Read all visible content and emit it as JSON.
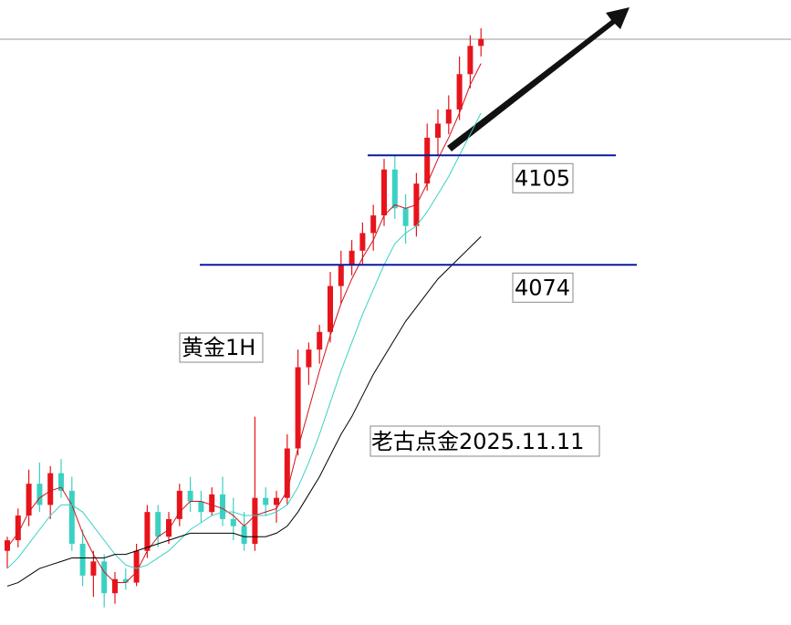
{
  "chart_data": {
    "type": "candlestick",
    "title": "黄金1H",
    "annotation": "老古点金2025.11.11",
    "ylim": [
      3972,
      4149
    ],
    "up_color": "#e8141c",
    "down_color": "#3ad1c4",
    "levels": [
      4105,
      4074
    ],
    "level_color": "#0a1a9c",
    "candles": [
      {
        "open": 3993,
        "high": 3997,
        "low": 3988,
        "close": 3996
      },
      {
        "open": 3996,
        "high": 4005,
        "low": 3994,
        "close": 4003
      },
      {
        "open": 4003,
        "high": 4016,
        "low": 4000,
        "close": 4012
      },
      {
        "open": 4012,
        "high": 4018,
        "low": 4004,
        "close": 4006
      },
      {
        "open": 4006,
        "high": 4017,
        "low": 4002,
        "close": 4015
      },
      {
        "open": 4015,
        "high": 4019,
        "low": 4008,
        "close": 4010
      },
      {
        "open": 4010,
        "high": 4014,
        "low": 3993,
        "close": 3995
      },
      {
        "open": 3995,
        "high": 3999,
        "low": 3983,
        "close": 3986
      },
      {
        "open": 3986,
        "high": 3993,
        "low": 3980,
        "close": 3990
      },
      {
        "open": 3990,
        "high": 3992,
        "low": 3977,
        "close": 3981
      },
      {
        "open": 3981,
        "high": 3987,
        "low": 3978,
        "close": 3985
      },
      {
        "open": 3985,
        "high": 3988,
        "low": 3982,
        "close": 3984
      },
      {
        "open": 3984,
        "high": 3995,
        "low": 3983,
        "close": 3993
      },
      {
        "open": 3993,
        "high": 4006,
        "low": 3991,
        "close": 4004
      },
      {
        "open": 4004,
        "high": 4006,
        "low": 3994,
        "close": 3997
      },
      {
        "open": 3997,
        "high": 4004,
        "low": 3995,
        "close": 4002
      },
      {
        "open": 4002,
        "high": 4012,
        "low": 4000,
        "close": 4010
      },
      {
        "open": 4010,
        "high": 4014,
        "low": 4004,
        "close": 4007
      },
      {
        "open": 4007,
        "high": 4010,
        "low": 4001,
        "close": 4004
      },
      {
        "open": 4004,
        "high": 4011,
        "low": 4003,
        "close": 4009
      },
      {
        "open": 4009,
        "high": 4014,
        "low": 4000,
        "close": 4002
      },
      {
        "open": 4002,
        "high": 4008,
        "low": 3996,
        "close": 4000
      },
      {
        "open": 4000,
        "high": 4004,
        "low": 3993,
        "close": 3995
      },
      {
        "open": 3995,
        "high": 4031,
        "low": 3993,
        "close": 4008
      },
      {
        "open": 4008,
        "high": 4011,
        "low": 4003,
        "close": 4006
      },
      {
        "open": 4006,
        "high": 4010,
        "low": 4001,
        "close": 4008
      },
      {
        "open": 4008,
        "high": 4026,
        "low": 4006,
        "close": 4022
      },
      {
        "open": 4022,
        "high": 4050,
        "low": 4020,
        "close": 4045
      },
      {
        "open": 4045,
        "high": 4052,
        "low": 4040,
        "close": 4050
      },
      {
        "open": 4050,
        "high": 4057,
        "low": 4046,
        "close": 4055
      },
      {
        "open": 4055,
        "high": 4072,
        "low": 4052,
        "close": 4068
      },
      {
        "open": 4068,
        "high": 4078,
        "low": 4063,
        "close": 4074
      },
      {
        "open": 4074,
        "high": 4081,
        "low": 4071,
        "close": 4078
      },
      {
        "open": 4078,
        "high": 4086,
        "low": 4074,
        "close": 4083
      },
      {
        "open": 4083,
        "high": 4091,
        "low": 4078,
        "close": 4088
      },
      {
        "open": 4088,
        "high": 4104,
        "low": 4085,
        "close": 4101
      },
      {
        "open": 4101,
        "high": 4105,
        "low": 4087,
        "close": 4090
      },
      {
        "open": 4090,
        "high": 4094,
        "low": 4080,
        "close": 4085
      },
      {
        "open": 4085,
        "high": 4100,
        "low": 4082,
        "close": 4097
      },
      {
        "open": 4097,
        "high": 4114,
        "low": 4095,
        "close": 4110
      },
      {
        "open": 4110,
        "high": 4118,
        "low": 4105,
        "close": 4114
      },
      {
        "open": 4114,
        "high": 4122,
        "low": 4111,
        "close": 4118
      },
      {
        "open": 4118,
        "high": 4133,
        "low": 4115,
        "close": 4128
      },
      {
        "open": 4128,
        "high": 4139,
        "low": 4124,
        "close": 4136
      },
      {
        "open": 4136,
        "high": 4141,
        "low": 4133,
        "close": 4138
      }
    ],
    "series": [
      {
        "color": "#d0141c",
        "values": [
          3994,
          3998,
          4004,
          4008,
          4010,
          4011,
          4006,
          3998,
          3992,
          3987,
          3984,
          3984,
          3987,
          3993,
          3997,
          3999,
          4004,
          4007,
          4007,
          4006,
          4005,
          4003,
          4000,
          4003,
          4004,
          4005,
          4010,
          4022,
          4033,
          4044,
          4054,
          4063,
          4070,
          4076,
          4081,
          4088,
          4091,
          4090,
          4091,
          4097,
          4104,
          4110,
          4117,
          4125,
          4131
        ]
      },
      {
        "color": "#3ad1c4",
        "values": [
          3988,
          3991,
          3995,
          3999,
          4003,
          4006,
          4006,
          4004,
          4000,
          3996,
          3992,
          3989,
          3988,
          3989,
          3991,
          3993,
          3996,
          3999,
          4001,
          4003,
          4004,
          4004,
          4003,
          4003,
          4003,
          4004,
          4006,
          4011,
          4018,
          4026,
          4035,
          4044,
          4052,
          4060,
          4067,
          4074,
          4080,
          4083,
          4085,
          4089,
          4094,
          4099,
          4105,
          4111,
          4117
        ]
      },
      {
        "color": "#000000",
        "values": [
          3983,
          3984,
          3986,
          3988,
          3989,
          3990,
          3991,
          3991,
          3991,
          3991,
          3992,
          3992,
          3993,
          3994,
          3995,
          3996,
          3997,
          3998,
          3998,
          3998,
          3998,
          3998,
          3997,
          3997,
          3997,
          3998,
          4000,
          4004,
          4009,
          4014,
          4020,
          4026,
          4031,
          4037,
          4043,
          4048,
          4053,
          4058,
          4062,
          4066,
          4070,
          4073,
          4076,
          4079,
          4082
        ]
      }
    ]
  }
}
